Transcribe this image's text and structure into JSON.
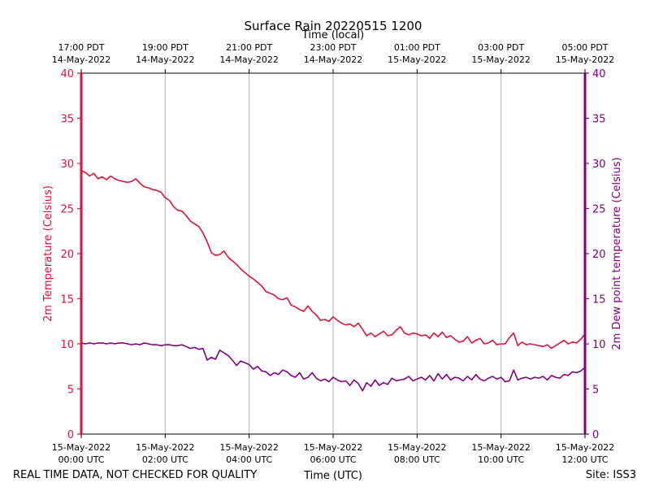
{
  "chart_data": {
    "type": "line",
    "title": "Surface Rain 20220515 1200",
    "top_axis_label": "Time (local)",
    "xlabel": "Time (UTC)",
    "ylabel_left": "2m Temperature (Celsius)",
    "ylabel_right": "2m Dew point temperature (Celsius)",
    "footer_left": "REAL TIME DATA, NOT CHECKED FOR QUALITY",
    "footer_right": "Site: ISS3",
    "x_range_hours_utc": [
      0,
      12
    ],
    "ylim": [
      0,
      40
    ],
    "yticks": [
      0,
      5,
      10,
      15,
      20,
      25,
      30,
      35,
      40
    ],
    "grid_vertical": true,
    "colors": {
      "temperature": "#dc143c",
      "dewpoint": "#800080",
      "grid": "#b0b0b0",
      "axis": "#000000"
    },
    "bottom_ticks": [
      {
        "hour": 0,
        "line1": "15-May-2022",
        "line2": "00:00 UTC"
      },
      {
        "hour": 2,
        "line1": "15-May-2022",
        "line2": "02:00 UTC"
      },
      {
        "hour": 4,
        "line1": "15-May-2022",
        "line2": "04:00 UTC"
      },
      {
        "hour": 6,
        "line1": "15-May-2022",
        "line2": "06:00 UTC"
      },
      {
        "hour": 8,
        "line1": "15-May-2022",
        "line2": "08:00 UTC"
      },
      {
        "hour": 10,
        "line1": "15-May-2022",
        "line2": "10:00 UTC"
      },
      {
        "hour": 12,
        "line1": "15-May-2022",
        "line2": "12:00 UTC"
      }
    ],
    "top_ticks": [
      {
        "hour": 0,
        "line1": "17:00 PDT",
        "line2": "14-May-2022"
      },
      {
        "hour": 2,
        "line1": "19:00 PDT",
        "line2": "14-May-2022"
      },
      {
        "hour": 4,
        "line1": "21:00 PDT",
        "line2": "14-May-2022"
      },
      {
        "hour": 6,
        "line1": "23:00 PDT",
        "line2": "14-May-2022"
      },
      {
        "hour": 8,
        "line1": "01:00 PDT",
        "line2": "15-May-2022"
      },
      {
        "hour": 10,
        "line1": "03:00 PDT",
        "line2": "15-May-2022"
      },
      {
        "hour": 12,
        "line1": "05:00 PDT",
        "line2": "15-May-2022"
      }
    ],
    "series": [
      {
        "name": "2m Temperature",
        "color": "#dc143c",
        "x": [
          0,
          0.1,
          0.2,
          0.3,
          0.4,
          0.5,
          0.6,
          0.7,
          0.8,
          0.9,
          1.0,
          1.1,
          1.2,
          1.3,
          1.4,
          1.5,
          1.6,
          1.7,
          1.8,
          1.9,
          2.0,
          2.1,
          2.2,
          2.3,
          2.4,
          2.5,
          2.6,
          2.7,
          2.8,
          2.9,
          3.0,
          3.1,
          3.2,
          3.3,
          3.4,
          3.5,
          3.6,
          3.7,
          3.8,
          3.9,
          4.0,
          4.1,
          4.2,
          4.3,
          4.4,
          4.5,
          4.6,
          4.7,
          4.8,
          4.9,
          5.0,
          5.1,
          5.2,
          5.3,
          5.4,
          5.5,
          5.6,
          5.7,
          5.8,
          5.9,
          6.0,
          6.1,
          6.2,
          6.3,
          6.4,
          6.5,
          6.6,
          6.7,
          6.8,
          6.9,
          7.0,
          7.1,
          7.2,
          7.3,
          7.4,
          7.5,
          7.6,
          7.7,
          7.8,
          7.9,
          8.0,
          8.1,
          8.2,
          8.3,
          8.4,
          8.5,
          8.6,
          8.7,
          8.8,
          8.9,
          9.0,
          9.1,
          9.2,
          9.3,
          9.4,
          9.5,
          9.6,
          9.7,
          9.8,
          9.9,
          10.0,
          10.1,
          10.2,
          10.3,
          10.4,
          10.5,
          10.6,
          10.7,
          10.8,
          10.9,
          11.0,
          11.1,
          11.2,
          11.3,
          11.4,
          11.5,
          11.6,
          11.7,
          11.8,
          11.9,
          12.0
        ],
        "values": [
          29.2,
          29.0,
          28.6,
          28.9,
          28.3,
          28.5,
          28.2,
          28.6,
          28.3,
          28.1,
          28.0,
          27.9,
          28.0,
          28.3,
          27.8,
          27.4,
          27.3,
          27.1,
          27.0,
          26.8,
          26.2,
          25.9,
          25.2,
          24.8,
          24.7,
          24.2,
          23.6,
          23.3,
          23.0,
          22.3,
          21.3,
          20.1,
          19.8,
          19.9,
          20.3,
          19.6,
          19.2,
          18.8,
          18.3,
          17.9,
          17.5,
          17.2,
          16.8,
          16.4,
          15.8,
          15.6,
          15.4,
          15.0,
          14.9,
          15.1,
          14.3,
          14.1,
          13.8,
          13.6,
          14.2,
          13.6,
          13.2,
          12.6,
          12.7,
          12.5,
          13.0,
          12.6,
          12.3,
          12.1,
          12.2,
          11.9,
          12.3,
          11.6,
          10.9,
          11.2,
          10.8,
          11.1,
          11.4,
          10.9,
          11.0,
          11.5,
          11.9,
          11.2,
          11.0,
          11.2,
          11.1,
          10.9,
          11.0,
          10.6,
          11.2,
          10.8,
          11.3,
          10.7,
          10.9,
          10.5,
          10.2,
          10.3,
          10.8,
          10.1,
          10.4,
          10.6,
          10.0,
          10.1,
          10.4,
          9.9,
          10.0,
          10.0,
          10.7,
          11.2,
          9.8,
          10.2,
          9.9,
          10.0,
          9.9,
          9.8,
          9.7,
          9.9,
          9.5,
          9.8,
          10.1,
          10.4,
          10.0,
          10.2,
          10.1,
          10.5,
          11.1
        ]
      },
      {
        "name": "2m Dew point temperature",
        "color": "#800080",
        "x": [
          0,
          0.1,
          0.2,
          0.3,
          0.4,
          0.5,
          0.6,
          0.7,
          0.8,
          0.9,
          1.0,
          1.1,
          1.2,
          1.3,
          1.4,
          1.5,
          1.6,
          1.7,
          1.8,
          1.9,
          2.0,
          2.1,
          2.2,
          2.3,
          2.4,
          2.5,
          2.6,
          2.7,
          2.8,
          2.9,
          3.0,
          3.1,
          3.2,
          3.3,
          3.4,
          3.5,
          3.6,
          3.7,
          3.8,
          3.9,
          4.0,
          4.1,
          4.2,
          4.3,
          4.4,
          4.5,
          4.6,
          4.7,
          4.8,
          4.9,
          5.0,
          5.1,
          5.2,
          5.3,
          5.4,
          5.5,
          5.6,
          5.7,
          5.8,
          5.9,
          6.0,
          6.1,
          6.2,
          6.3,
          6.4,
          6.5,
          6.6,
          6.7,
          6.8,
          6.9,
          7.0,
          7.1,
          7.2,
          7.3,
          7.4,
          7.5,
          7.6,
          7.7,
          7.8,
          7.9,
          8.0,
          8.1,
          8.2,
          8.3,
          8.4,
          8.5,
          8.6,
          8.7,
          8.8,
          8.9,
          9.0,
          9.1,
          9.2,
          9.3,
          9.4,
          9.5,
          9.6,
          9.7,
          9.8,
          9.9,
          10.0,
          10.1,
          10.2,
          10.3,
          10.4,
          10.5,
          10.6,
          10.7,
          10.8,
          10.9,
          11.0,
          11.1,
          11.2,
          11.3,
          11.4,
          11.5,
          11.6,
          11.7,
          11.8,
          11.9,
          12.0
        ],
        "values": [
          10.1,
          10.0,
          10.1,
          10.0,
          10.1,
          10.1,
          10.0,
          10.1,
          10.0,
          10.1,
          10.1,
          10.0,
          9.9,
          10.0,
          9.9,
          10.1,
          10.0,
          9.9,
          9.9,
          9.8,
          9.9,
          9.9,
          9.8,
          9.8,
          9.9,
          9.7,
          9.5,
          9.6,
          9.4,
          9.5,
          8.2,
          8.5,
          8.3,
          9.3,
          9.0,
          8.7,
          8.2,
          7.6,
          8.1,
          7.9,
          7.7,
          7.2,
          7.5,
          7.0,
          6.9,
          6.5,
          6.8,
          6.6,
          7.1,
          6.9,
          6.5,
          6.3,
          6.8,
          6.1,
          6.3,
          6.8,
          6.2,
          5.9,
          6.1,
          5.8,
          6.3,
          6.0,
          5.8,
          5.9,
          5.4,
          6.0,
          5.6,
          4.8,
          5.7,
          5.3,
          6.0,
          5.4,
          5.7,
          5.5,
          6.2,
          5.9,
          6.0,
          6.1,
          6.4,
          5.9,
          6.1,
          6.3,
          6.0,
          6.5,
          5.9,
          6.7,
          6.1,
          6.6,
          6.0,
          6.3,
          6.2,
          5.9,
          6.4,
          6.0,
          6.6,
          6.1,
          5.9,
          6.2,
          6.4,
          6.1,
          6.3,
          5.8,
          5.9,
          7.1,
          6.0,
          6.2,
          6.3,
          6.1,
          6.3,
          6.2,
          6.4,
          6.0,
          6.5,
          6.3,
          6.2,
          6.6,
          6.5,
          6.9,
          6.8,
          7.0,
          7.4
        ]
      }
    ]
  }
}
